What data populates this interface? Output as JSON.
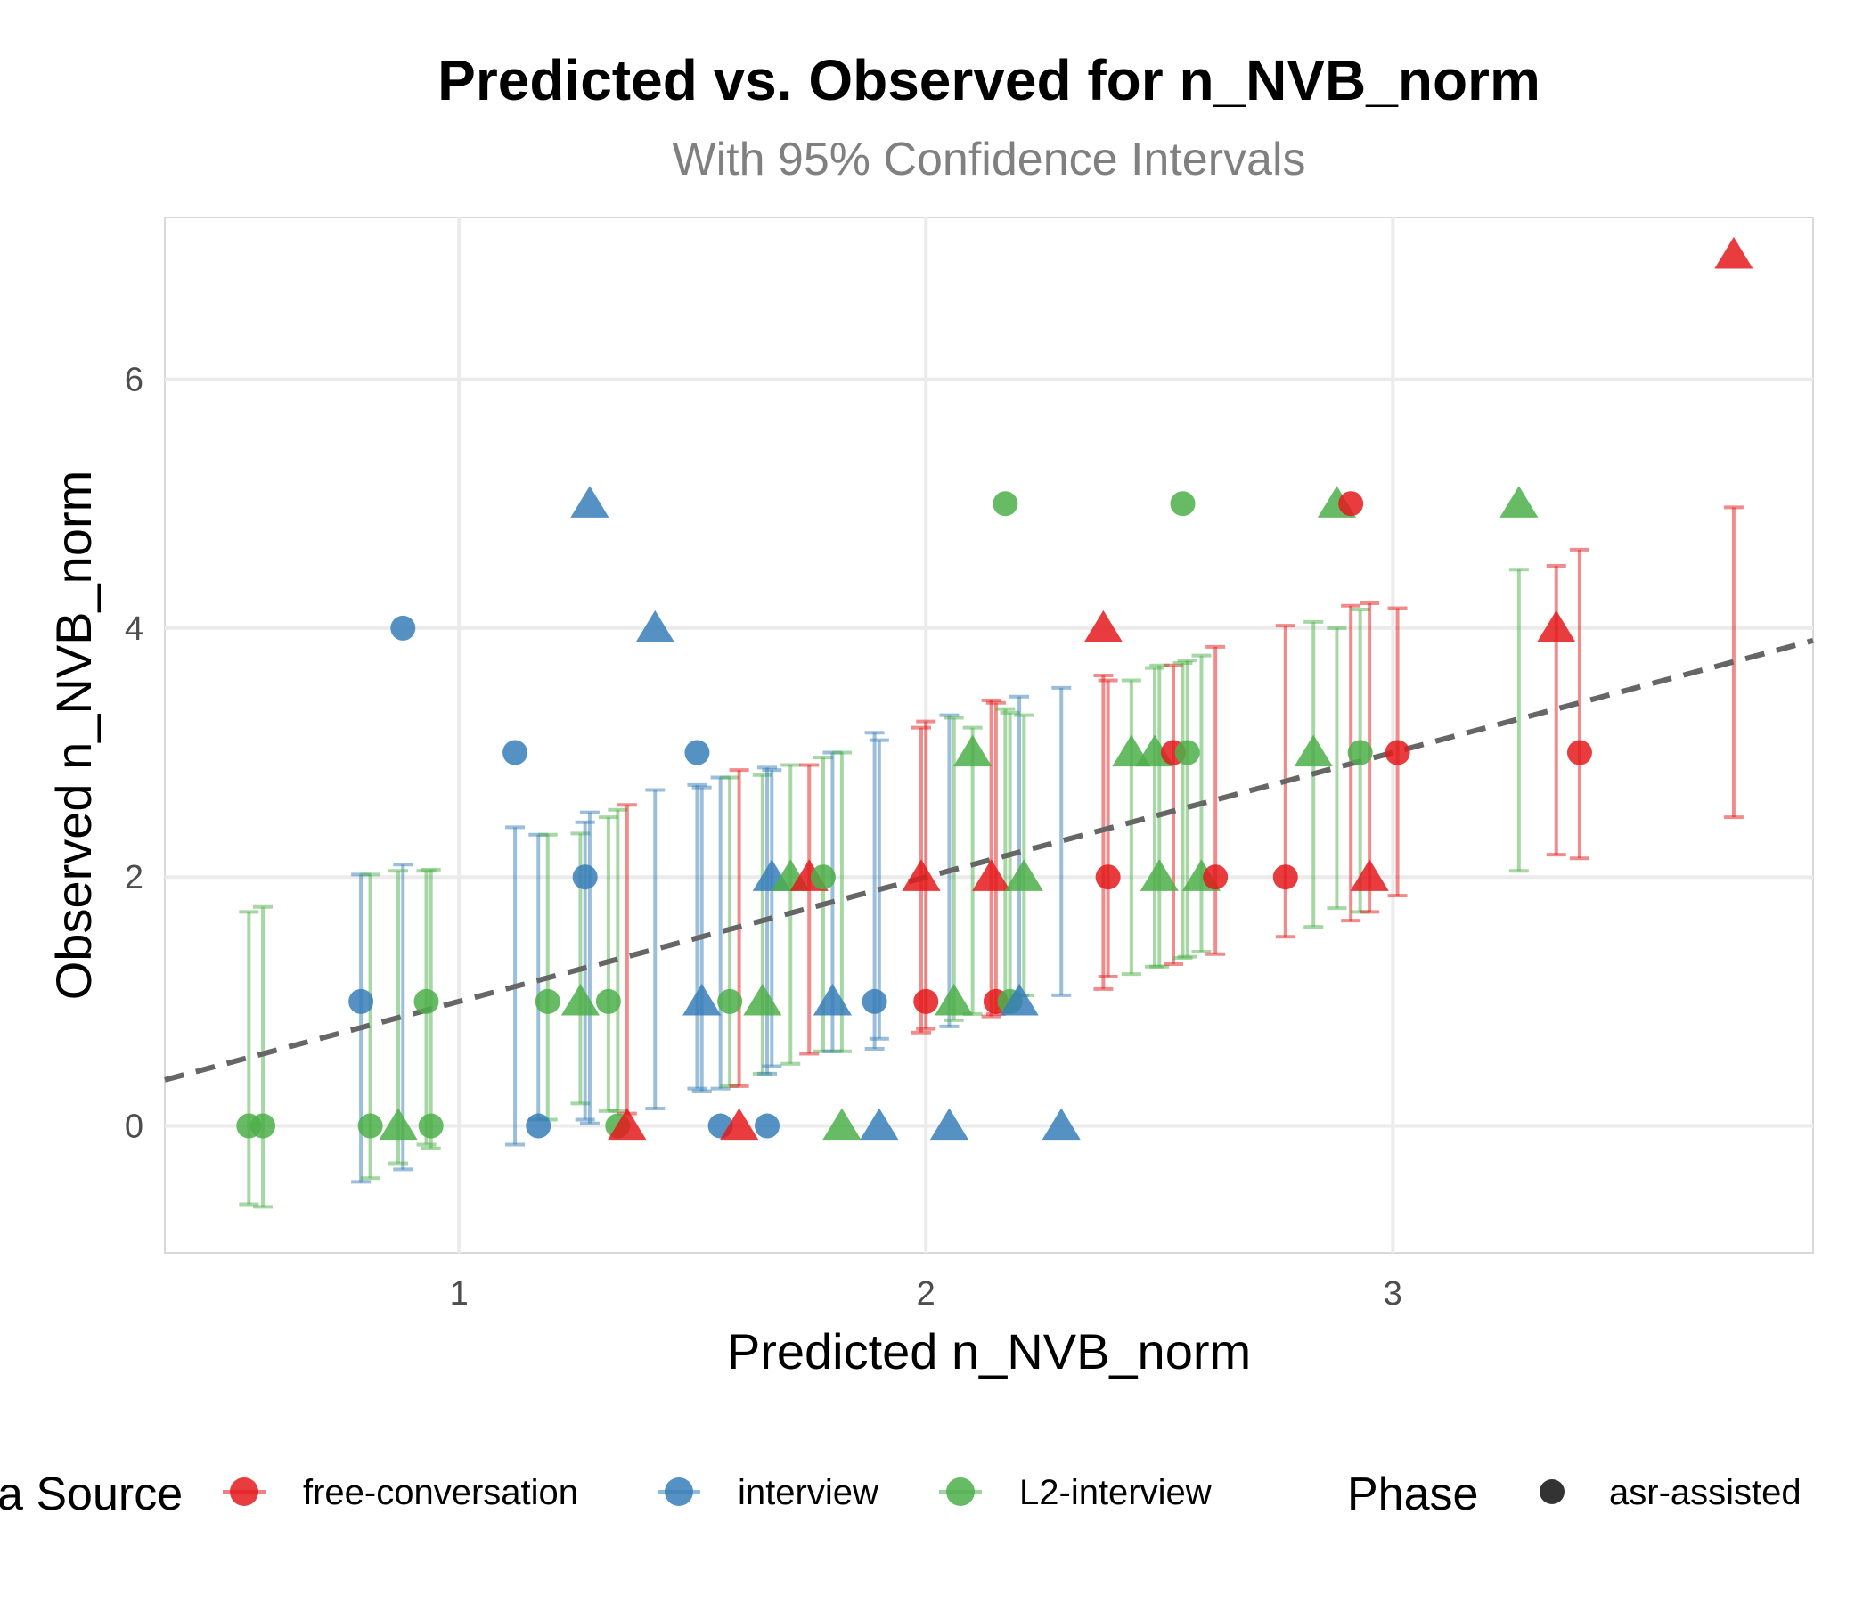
{
  "chart_data": {
    "type": "scatter",
    "title": "Predicted vs. Observed for n_NVB_norm",
    "subtitle": "With 95% Confidence Intervals",
    "xlabel": "Predicted n_NVB_norm",
    "ylabel": "Observed n_NVB_norm",
    "xlim": [
      0.37,
      3.9
    ],
    "ylim": [
      -1.02,
      7.3
    ],
    "x_ticks": [
      "1",
      "2",
      "3"
    ],
    "y_ticks": [
      "0",
      "2",
      "4",
      "6"
    ],
    "x_tick_values": [
      1,
      2,
      3
    ],
    "y_tick_values": [
      0,
      2,
      4,
      6
    ],
    "grid": true,
    "reference_line": {
      "style": "dashed",
      "color": "#666666",
      "intercept": 0,
      "slope": 1
    },
    "legend_placement": "bottom",
    "colors": {
      "free-conversation": "#e41a1c",
      "interview": "#377eb8",
      "L2-interview": "#4daf4a"
    },
    "legend": {
      "source_title": "a Source",
      "source_items": [
        "free-conversation",
        "interview",
        "L2-interview"
      ],
      "phase_title": "Phase",
      "phase_items": [
        "asr-assisted"
      ]
    },
    "points": [
      {
        "source": "L2-interview",
        "phase": "circle",
        "x": 0.55,
        "y": 0,
        "lo": -0.63,
        "hi": 1.72
      },
      {
        "source": "L2-interview",
        "phase": "circle",
        "x": 0.58,
        "y": 0,
        "lo": -0.65,
        "hi": 1.76
      },
      {
        "source": "interview",
        "phase": "circle",
        "x": 0.79,
        "y": 1,
        "lo": -0.45,
        "hi": 2.02
      },
      {
        "source": "L2-interview",
        "phase": "circle",
        "x": 0.81,
        "y": 0,
        "lo": -0.42,
        "hi": 2.02
      },
      {
        "source": "interview",
        "phase": "circle",
        "x": 0.88,
        "y": 4,
        "lo": -0.35,
        "hi": 2.1
      },
      {
        "source": "L2-interview",
        "phase": "triangle",
        "x": 0.87,
        "y": 0,
        "lo": -0.3,
        "hi": 2.05
      },
      {
        "source": "L2-interview",
        "phase": "circle",
        "x": 0.93,
        "y": 1,
        "lo": -0.15,
        "hi": 2.05
      },
      {
        "source": "L2-interview",
        "phase": "circle",
        "x": 0.94,
        "y": 0,
        "lo": -0.18,
        "hi": 2.06
      },
      {
        "source": "interview",
        "phase": "circle",
        "x": 1.12,
        "y": 3,
        "lo": -0.15,
        "hi": 2.4
      },
      {
        "source": "interview",
        "phase": "circle",
        "x": 1.17,
        "y": 0,
        "lo": 0.05,
        "hi": 2.34
      },
      {
        "source": "L2-interview",
        "phase": "circle",
        "x": 1.19,
        "y": 1,
        "lo": 0.05,
        "hi": 2.34
      },
      {
        "source": "L2-interview",
        "phase": "triangle",
        "x": 1.26,
        "y": 1,
        "lo": 0.18,
        "hi": 2.35
      },
      {
        "source": "interview",
        "phase": "circle",
        "x": 1.27,
        "y": 2,
        "lo": 0.05,
        "hi": 2.44
      },
      {
        "source": "interview",
        "phase": "triangle",
        "x": 1.28,
        "y": 5,
        "lo": 0.02,
        "hi": 2.52
      },
      {
        "source": "L2-interview",
        "phase": "circle",
        "x": 1.32,
        "y": 1,
        "lo": 0.12,
        "hi": 2.48
      },
      {
        "source": "L2-interview",
        "phase": "circle",
        "x": 1.34,
        "y": 0,
        "lo": 0.12,
        "hi": 2.54
      },
      {
        "source": "free-conversation",
        "phase": "triangle",
        "x": 1.36,
        "y": 0,
        "lo": 0.1,
        "hi": 2.58
      },
      {
        "source": "interview",
        "phase": "triangle",
        "x": 1.42,
        "y": 4,
        "lo": 0.14,
        "hi": 2.7
      },
      {
        "source": "interview",
        "phase": "circle",
        "x": 1.51,
        "y": 3,
        "lo": 0.3,
        "hi": 2.74
      },
      {
        "source": "interview",
        "phase": "triangle",
        "x": 1.52,
        "y": 1,
        "lo": 0.28,
        "hi": 2.72
      },
      {
        "source": "interview",
        "phase": "circle",
        "x": 1.56,
        "y": 0,
        "lo": 0.3,
        "hi": 2.8
      },
      {
        "source": "L2-interview",
        "phase": "circle",
        "x": 1.58,
        "y": 1,
        "lo": 0.32,
        "hi": 2.8
      },
      {
        "source": "free-conversation",
        "phase": "triangle",
        "x": 1.6,
        "y": 0,
        "lo": 0.32,
        "hi": 2.86
      },
      {
        "source": "L2-interview",
        "phase": "triangle",
        "x": 1.65,
        "y": 1,
        "lo": 0.42,
        "hi": 2.82
      },
      {
        "source": "interview",
        "phase": "circle",
        "x": 1.66,
        "y": 0,
        "lo": 0.42,
        "hi": 2.88
      },
      {
        "source": "interview",
        "phase": "triangle",
        "x": 1.67,
        "y": 2,
        "lo": 0.48,
        "hi": 2.86
      },
      {
        "source": "L2-interview",
        "phase": "triangle",
        "x": 1.71,
        "y": 2,
        "lo": 0.5,
        "hi": 2.9
      },
      {
        "source": "free-conversation",
        "phase": "triangle",
        "x": 1.75,
        "y": 2,
        "lo": 0.58,
        "hi": 2.9
      },
      {
        "source": "L2-interview",
        "phase": "circle",
        "x": 1.78,
        "y": 2,
        "lo": 0.6,
        "hi": 2.96
      },
      {
        "source": "interview",
        "phase": "triangle",
        "x": 1.8,
        "y": 1,
        "lo": 0.6,
        "hi": 3.0
      },
      {
        "source": "L2-interview",
        "phase": "triangle",
        "x": 1.82,
        "y": 0,
        "lo": 0.6,
        "hi": 3.0
      },
      {
        "source": "interview",
        "phase": "circle",
        "x": 1.89,
        "y": 1,
        "lo": 0.62,
        "hi": 3.16
      },
      {
        "source": "interview",
        "phase": "triangle",
        "x": 1.9,
        "y": 0,
        "lo": 0.7,
        "hi": 3.1
      },
      {
        "source": "free-conversation",
        "phase": "triangle",
        "x": 1.99,
        "y": 2,
        "lo": 0.75,
        "hi": 3.2
      },
      {
        "source": "free-conversation",
        "phase": "circle",
        "x": 2.0,
        "y": 1,
        "lo": 0.78,
        "hi": 3.25
      },
      {
        "source": "interview",
        "phase": "triangle",
        "x": 2.05,
        "y": 0,
        "lo": 0.8,
        "hi": 3.3
      },
      {
        "source": "L2-interview",
        "phase": "triangle",
        "x": 2.06,
        "y": 1,
        "lo": 0.85,
        "hi": 3.28
      },
      {
        "source": "L2-interview",
        "phase": "triangle",
        "x": 2.1,
        "y": 3,
        "lo": 0.9,
        "hi": 3.2
      },
      {
        "source": "free-conversation",
        "phase": "triangle",
        "x": 2.14,
        "y": 2,
        "lo": 0.88,
        "hi": 3.42
      },
      {
        "source": "free-conversation",
        "phase": "circle",
        "x": 2.15,
        "y": 1,
        "lo": 0.9,
        "hi": 3.4
      },
      {
        "source": "L2-interview",
        "phase": "circle",
        "x": 2.17,
        "y": 5,
        "lo": 0.95,
        "hi": 3.35
      },
      {
        "source": "L2-interview",
        "phase": "circle",
        "x": 2.18,
        "y": 1,
        "lo": 1.0,
        "hi": 3.32
      },
      {
        "source": "interview",
        "phase": "triangle",
        "x": 2.2,
        "y": 1,
        "lo": 1.05,
        "hi": 3.45
      },
      {
        "source": "L2-interview",
        "phase": "triangle",
        "x": 2.21,
        "y": 2,
        "lo": 1.05,
        "hi": 3.3
      },
      {
        "source": "interview",
        "phase": "triangle",
        "x": 2.29,
        "y": 0,
        "lo": 1.05,
        "hi": 3.52
      },
      {
        "source": "free-conversation",
        "phase": "triangle",
        "x": 2.38,
        "y": 4,
        "lo": 1.1,
        "hi": 3.62
      },
      {
        "source": "free-conversation",
        "phase": "circle",
        "x": 2.39,
        "y": 2,
        "lo": 1.2,
        "hi": 3.58
      },
      {
        "source": "L2-interview",
        "phase": "triangle",
        "x": 2.44,
        "y": 3,
        "lo": 1.22,
        "hi": 3.58
      },
      {
        "source": "L2-interview",
        "phase": "triangle",
        "x": 2.49,
        "y": 3,
        "lo": 1.28,
        "hi": 3.68
      },
      {
        "source": "L2-interview",
        "phase": "triangle",
        "x": 2.5,
        "y": 2,
        "lo": 1.28,
        "hi": 3.7
      },
      {
        "source": "free-conversation",
        "phase": "circle",
        "x": 2.53,
        "y": 3,
        "lo": 1.3,
        "hi": 3.7
      },
      {
        "source": "L2-interview",
        "phase": "circle",
        "x": 2.55,
        "y": 5,
        "lo": 1.35,
        "hi": 3.72
      },
      {
        "source": "L2-interview",
        "phase": "circle",
        "x": 2.56,
        "y": 3,
        "lo": 1.36,
        "hi": 3.74
      },
      {
        "source": "L2-interview",
        "phase": "triangle",
        "x": 2.59,
        "y": 2,
        "lo": 1.4,
        "hi": 3.78
      },
      {
        "source": "free-conversation",
        "phase": "circle",
        "x": 2.62,
        "y": 2,
        "lo": 1.38,
        "hi": 3.85
      },
      {
        "source": "free-conversation",
        "phase": "circle",
        "x": 2.77,
        "y": 2,
        "lo": 1.52,
        "hi": 4.02
      },
      {
        "source": "L2-interview",
        "phase": "triangle",
        "x": 2.83,
        "y": 3,
        "lo": 1.6,
        "hi": 4.05
      },
      {
        "source": "L2-interview",
        "phase": "triangle",
        "x": 2.88,
        "y": 5,
        "lo": 1.75,
        "hi": 4.0
      },
      {
        "source": "free-conversation",
        "phase": "circle",
        "x": 2.91,
        "y": 5,
        "lo": 1.65,
        "hi": 4.18
      },
      {
        "source": "L2-interview",
        "phase": "circle",
        "x": 2.93,
        "y": 3,
        "lo": 1.72,
        "hi": 4.15
      },
      {
        "source": "free-conversation",
        "phase": "triangle",
        "x": 2.95,
        "y": 2,
        "lo": 1.72,
        "hi": 4.2
      },
      {
        "source": "free-conversation",
        "phase": "circle",
        "x": 3.01,
        "y": 3,
        "lo": 1.85,
        "hi": 4.16
      },
      {
        "source": "L2-interview",
        "phase": "triangle",
        "x": 3.27,
        "y": 5,
        "lo": 2.05,
        "hi": 4.47
      },
      {
        "source": "free-conversation",
        "phase": "triangle",
        "x": 3.35,
        "y": 4,
        "lo": 2.18,
        "hi": 4.5
      },
      {
        "source": "free-conversation",
        "phase": "circle",
        "x": 3.4,
        "y": 3,
        "lo": 2.15,
        "hi": 4.63
      },
      {
        "source": "free-conversation",
        "phase": "triangle",
        "x": 3.73,
        "y": 7,
        "lo": 2.48,
        "hi": 4.97
      }
    ]
  }
}
